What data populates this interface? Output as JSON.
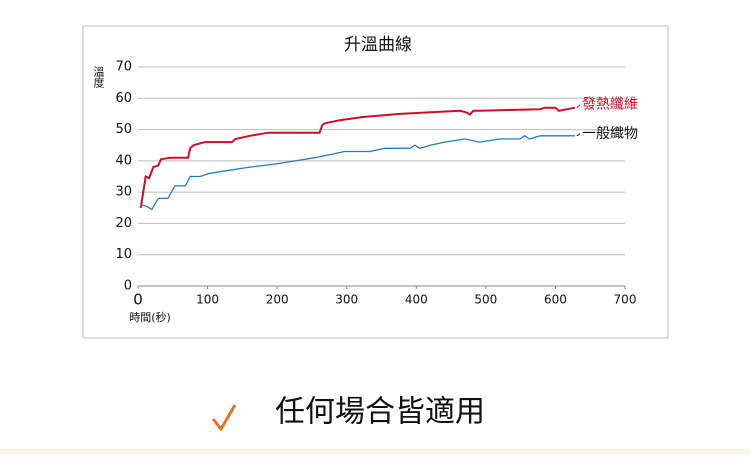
{
  "chart_data": {
    "type": "line",
    "title": "升溫曲線",
    "y_label": "溫度",
    "x_label": "時間(秒)",
    "xlim": [
      0,
      700
    ],
    "xticks": [
      0,
      100,
      200,
      300,
      400,
      500,
      600,
      700
    ],
    "ylim": [
      0,
      70
    ],
    "yticks": [
      0,
      10,
      20,
      30,
      40,
      50,
      60,
      70
    ],
    "grid": true,
    "series": [
      {
        "name": "發熱纖維",
        "color": "#c8102e",
        "x": [
          4,
          11,
          16,
          22,
          29,
          33,
          46,
          72,
          75,
          80,
          96,
          135,
          140,
          161,
          187,
          261,
          265,
          269,
          290,
          322,
          376,
          463,
          472,
          477,
          482,
          491,
          578,
          585,
          600,
          605,
          628
        ],
        "values": [
          25,
          35,
          34.5,
          38,
          38.5,
          40.5,
          41,
          41,
          44,
          45,
          46,
          46,
          47,
          48,
          49,
          49,
          51.5,
          52,
          53,
          54,
          55,
          56,
          55.5,
          54.8,
          56,
          56,
          56.5,
          57,
          57,
          56,
          57
        ]
      },
      {
        "name": "一般織物",
        "color": "#2a7ab8",
        "x": [
          4,
          12,
          20,
          29,
          43,
          53,
          68,
          75,
          89,
          103,
          132,
          161,
          197,
          226,
          254,
          276,
          297,
          333,
          355,
          391,
          398,
          405,
          420,
          441,
          470,
          491,
          520,
          549,
          556,
          563,
          578,
          628
        ],
        "values": [
          26,
          25.5,
          24.5,
          28,
          28,
          32,
          32,
          35,
          35,
          36,
          37,
          38,
          39,
          40,
          41,
          42,
          43,
          43,
          44,
          44,
          45,
          44,
          45,
          46,
          47,
          46,
          47,
          47,
          48,
          47,
          48,
          48
        ]
      }
    ]
  },
  "footer": {
    "text": "任何場合皆適用"
  }
}
